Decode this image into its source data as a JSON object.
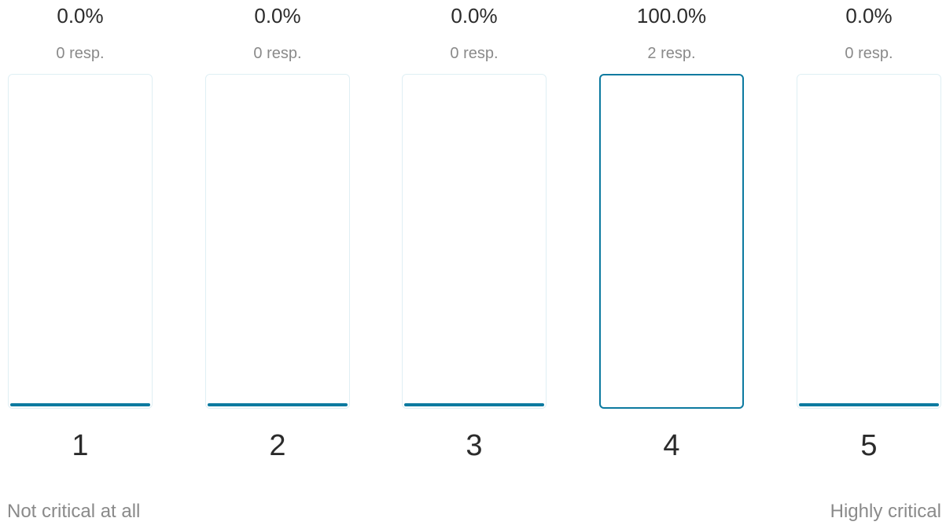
{
  "chart_data": {
    "type": "bar",
    "categories": [
      "1",
      "2",
      "3",
      "4",
      "5"
    ],
    "values": [
      0.0,
      0.0,
      0.0,
      100.0,
      0.0
    ],
    "percent_labels": [
      "0.0%",
      "0.0%",
      "0.0%",
      "100.0%",
      "0.0%"
    ],
    "response_labels": [
      "0 resp.",
      "0 resp.",
      "0 resp.",
      "2 resp.",
      "0 resp."
    ],
    "responses": [
      0,
      0,
      0,
      2,
      0
    ],
    "ylim": [
      0,
      100
    ],
    "scale_low_label": "Not critical at all",
    "scale_high_label": "Highly critical",
    "grid": false
  },
  "colors": {
    "accent": "#0c7aa0",
    "bar_border": "#dfeff4",
    "text_dark": "#2b2b2b",
    "text_muted": "#8a8a8a"
  }
}
